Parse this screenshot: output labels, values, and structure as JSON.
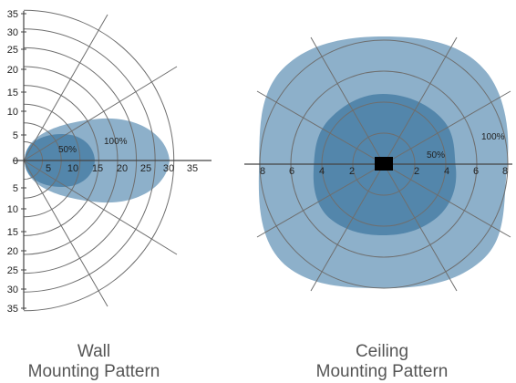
{
  "wall": {
    "left_ticks": [
      "35",
      "30",
      "25",
      "20",
      "15",
      "10",
      "5",
      "0",
      "5",
      "10",
      "15",
      "20",
      "25",
      "30",
      "35"
    ],
    "axis_ticks": [
      "5",
      "10",
      "15",
      "20",
      "25",
      "30",
      "35"
    ],
    "inner_label": "50%",
    "outer_label": "100%",
    "caption_line1": "Wall",
    "caption_line2": "Mounting Pattern",
    "colors": {
      "outer": "#8db0ca",
      "inner": "#5386ab",
      "grid": "#6e6e6e"
    }
  },
  "ceiling": {
    "axis_ticks": [
      "8",
      "6",
      "4",
      "2",
      "2",
      "4",
      "6",
      "8"
    ],
    "inner_label": "50%",
    "outer_label": "100%",
    "caption_line1": "Ceiling",
    "caption_line2": "Mounting Pattern",
    "colors": {
      "outer": "#8db0ca",
      "inner": "#5386ab",
      "grid": "#6e6e6e",
      "sensor": "#000000"
    }
  }
}
